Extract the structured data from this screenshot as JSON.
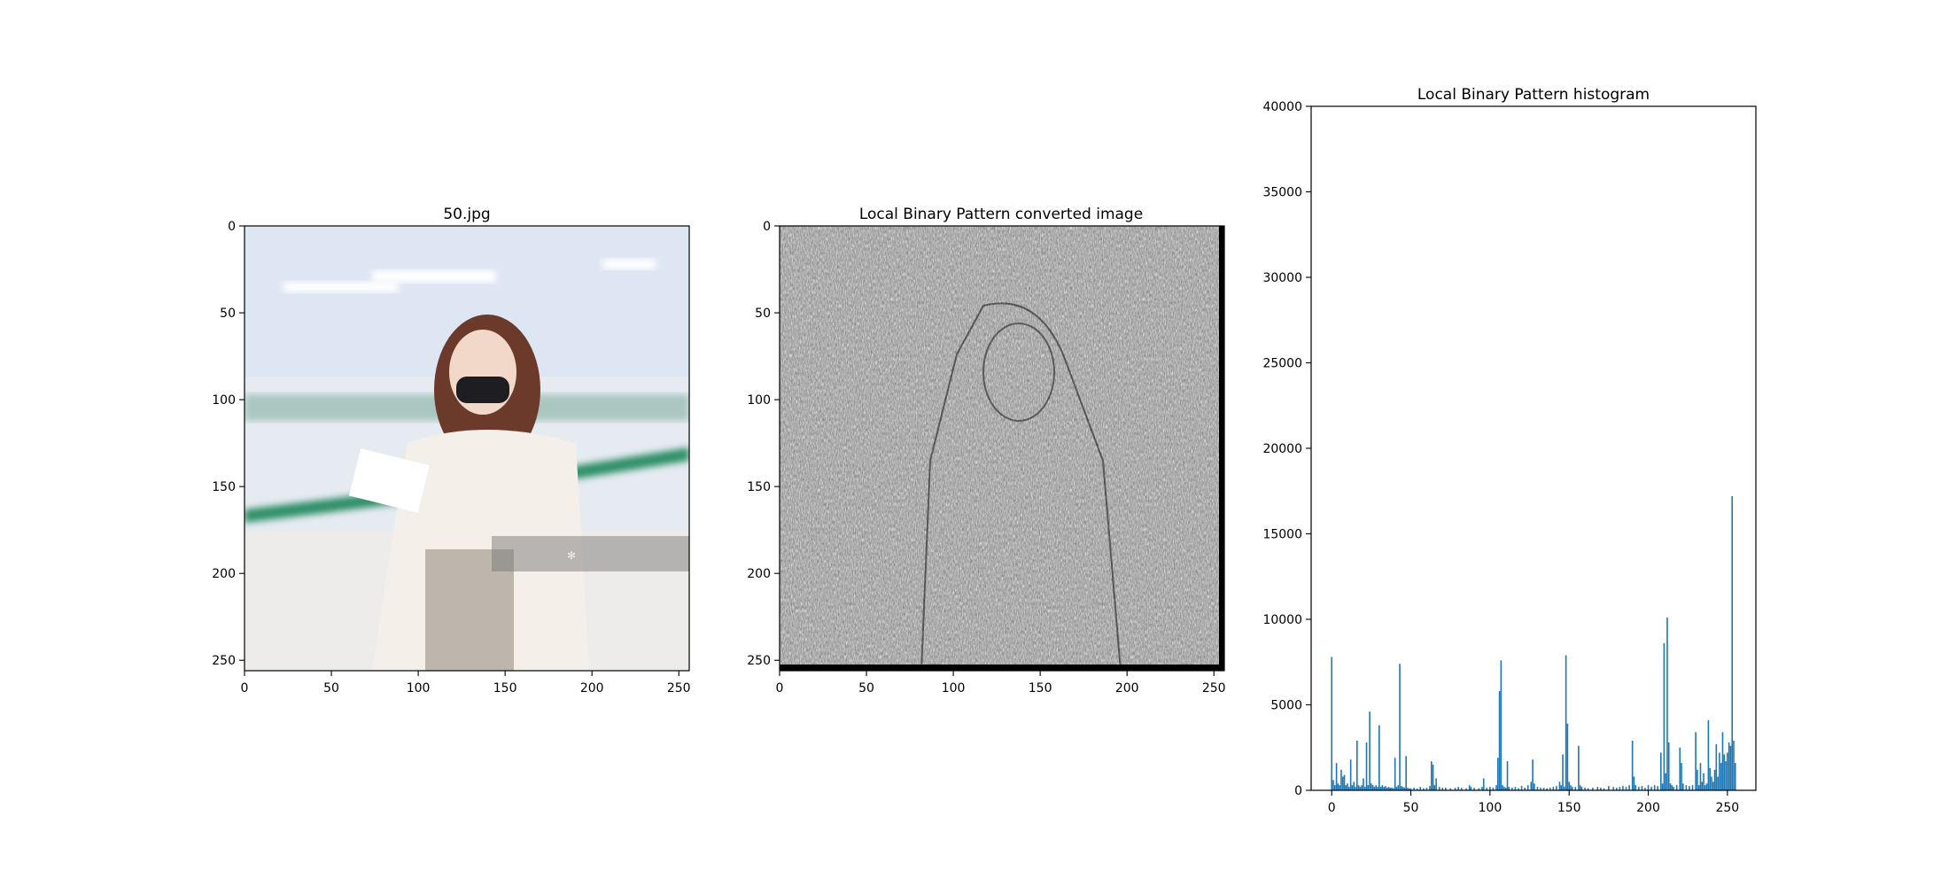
{
  "panels": [
    {
      "title": "50.jpg",
      "image_description": "photo",
      "x_ticks": [
        "0",
        "50",
        "100",
        "150",
        "200",
        "250"
      ],
      "y_ticks": [
        "0",
        "50",
        "100",
        "150",
        "200",
        "250"
      ]
    },
    {
      "title": "Local Binary Pattern converted image",
      "image_description": "lbp-texture",
      "x_ticks": [
        "0",
        "50",
        "100",
        "150",
        "200",
        "250"
      ],
      "y_ticks": [
        "0",
        "50",
        "100",
        "150",
        "200",
        "250"
      ]
    }
  ],
  "chart_data": {
    "type": "bar",
    "title": "Local Binary Pattern histogram",
    "xlabel": "",
    "ylabel": "",
    "xlim": [
      -13,
      268
    ],
    "ylim": [
      0,
      40000
    ],
    "x_ticks": [
      0,
      50,
      100,
      150,
      200,
      250
    ],
    "y_ticks": [
      0,
      5000,
      10000,
      15000,
      20000,
      25000,
      30000,
      35000,
      40000
    ],
    "bar_color": "#1f77b4",
    "points": [
      [
        0,
        7800
      ],
      [
        1,
        600
      ],
      [
        2,
        300
      ],
      [
        3,
        1600
      ],
      [
        4,
        400
      ],
      [
        5,
        300
      ],
      [
        6,
        1200
      ],
      [
        7,
        800
      ],
      [
        8,
        900
      ],
      [
        9,
        300
      ],
      [
        10,
        400
      ],
      [
        11,
        200
      ],
      [
        12,
        1800
      ],
      [
        13,
        300
      ],
      [
        14,
        500
      ],
      [
        15,
        200
      ],
      [
        16,
        2900
      ],
      [
        17,
        300
      ],
      [
        18,
        200
      ],
      [
        19,
        300
      ],
      [
        20,
        700
      ],
      [
        21,
        200
      ],
      [
        22,
        2800
      ],
      [
        23,
        300
      ],
      [
        24,
        4600
      ],
      [
        25,
        400
      ],
      [
        26,
        300
      ],
      [
        27,
        200
      ],
      [
        28,
        300
      ],
      [
        29,
        200
      ],
      [
        30,
        3800
      ],
      [
        31,
        200
      ],
      [
        32,
        300
      ],
      [
        33,
        200
      ],
      [
        34,
        250
      ],
      [
        35,
        150
      ],
      [
        36,
        200
      ],
      [
        37,
        150
      ],
      [
        38,
        150
      ],
      [
        39,
        120
      ],
      [
        40,
        1900
      ],
      [
        41,
        200
      ],
      [
        42,
        300
      ],
      [
        43,
        7400
      ],
      [
        44,
        250
      ],
      [
        45,
        200
      ],
      [
        46,
        150
      ],
      [
        47,
        2000
      ],
      [
        48,
        150
      ],
      [
        49,
        100
      ],
      [
        50,
        120
      ],
      [
        52,
        150
      ],
      [
        54,
        100
      ],
      [
        56,
        200
      ],
      [
        58,
        120
      ],
      [
        60,
        150
      ],
      [
        62,
        250
      ],
      [
        63,
        1700
      ],
      [
        64,
        1500
      ],
      [
        65,
        300
      ],
      [
        66,
        700
      ],
      [
        68,
        200
      ],
      [
        70,
        150
      ],
      [
        72,
        150
      ],
      [
        75,
        120
      ],
      [
        78,
        150
      ],
      [
        80,
        200
      ],
      [
        82,
        150
      ],
      [
        85,
        120
      ],
      [
        87,
        300
      ],
      [
        88,
        200
      ],
      [
        90,
        150
      ],
      [
        93,
        120
      ],
      [
        95,
        200
      ],
      [
        96,
        700
      ],
      [
        98,
        150
      ],
      [
        100,
        200
      ],
      [
        102,
        150
      ],
      [
        104,
        300
      ],
      [
        105,
        1900
      ],
      [
        106,
        5800
      ],
      [
        107,
        7600
      ],
      [
        108,
        300
      ],
      [
        109,
        200
      ],
      [
        110,
        150
      ],
      [
        111,
        1700
      ],
      [
        112,
        200
      ],
      [
        114,
        150
      ],
      [
        116,
        200
      ],
      [
        118,
        120
      ],
      [
        120,
        250
      ],
      [
        122,
        150
      ],
      [
        124,
        300
      ],
      [
        126,
        500
      ],
      [
        127,
        1800
      ],
      [
        128,
        400
      ],
      [
        130,
        200
      ],
      [
        132,
        150
      ],
      [
        134,
        150
      ],
      [
        136,
        120
      ],
      [
        138,
        150
      ],
      [
        140,
        200
      ],
      [
        142,
        250
      ],
      [
        144,
        500
      ],
      [
        145,
        300
      ],
      [
        146,
        2100
      ],
      [
        147,
        200
      ],
      [
        148,
        7900
      ],
      [
        149,
        3900
      ],
      [
        150,
        500
      ],
      [
        151,
        300
      ],
      [
        152,
        200
      ],
      [
        154,
        200
      ],
      [
        156,
        2600
      ],
      [
        157,
        300
      ],
      [
        158,
        200
      ],
      [
        160,
        150
      ],
      [
        162,
        120
      ],
      [
        165,
        150
      ],
      [
        168,
        200
      ],
      [
        170,
        150
      ],
      [
        172,
        120
      ],
      [
        175,
        250
      ],
      [
        178,
        200
      ],
      [
        180,
        150
      ],
      [
        182,
        200
      ],
      [
        184,
        250
      ],
      [
        186,
        200
      ],
      [
        188,
        300
      ],
      [
        190,
        2900
      ],
      [
        191,
        800
      ],
      [
        192,
        300
      ],
      [
        194,
        200
      ],
      [
        196,
        250
      ],
      [
        198,
        150
      ],
      [
        200,
        300
      ],
      [
        202,
        200
      ],
      [
        204,
        300
      ],
      [
        206,
        250
      ],
      [
        208,
        2200
      ],
      [
        209,
        400
      ],
      [
        210,
        8600
      ],
      [
        211,
        1000
      ],
      [
        212,
        10100
      ],
      [
        213,
        2800
      ],
      [
        214,
        400
      ],
      [
        215,
        300
      ],
      [
        216,
        200
      ],
      [
        218,
        300
      ],
      [
        220,
        2500
      ],
      [
        221,
        1600
      ],
      [
        222,
        400
      ],
      [
        224,
        300
      ],
      [
        226,
        250
      ],
      [
        228,
        300
      ],
      [
        230,
        3400
      ],
      [
        231,
        1200
      ],
      [
        232,
        300
      ],
      [
        233,
        1600
      ],
      [
        234,
        500
      ],
      [
        235,
        1000
      ],
      [
        236,
        300
      ],
      [
        237,
        400
      ],
      [
        238,
        4100
      ],
      [
        239,
        1300
      ],
      [
        240,
        800
      ],
      [
        241,
        500
      ],
      [
        242,
        1200
      ],
      [
        243,
        2700
      ],
      [
        244,
        800
      ],
      [
        245,
        2200
      ],
      [
        246,
        1600
      ],
      [
        247,
        3400
      ],
      [
        248,
        2100
      ],
      [
        249,
        1700
      ],
      [
        250,
        2200
      ],
      [
        251,
        2800
      ],
      [
        252,
        2600
      ],
      [
        253,
        17200
      ],
      [
        254,
        2900
      ],
      [
        255,
        1600
      ]
    ]
  }
}
